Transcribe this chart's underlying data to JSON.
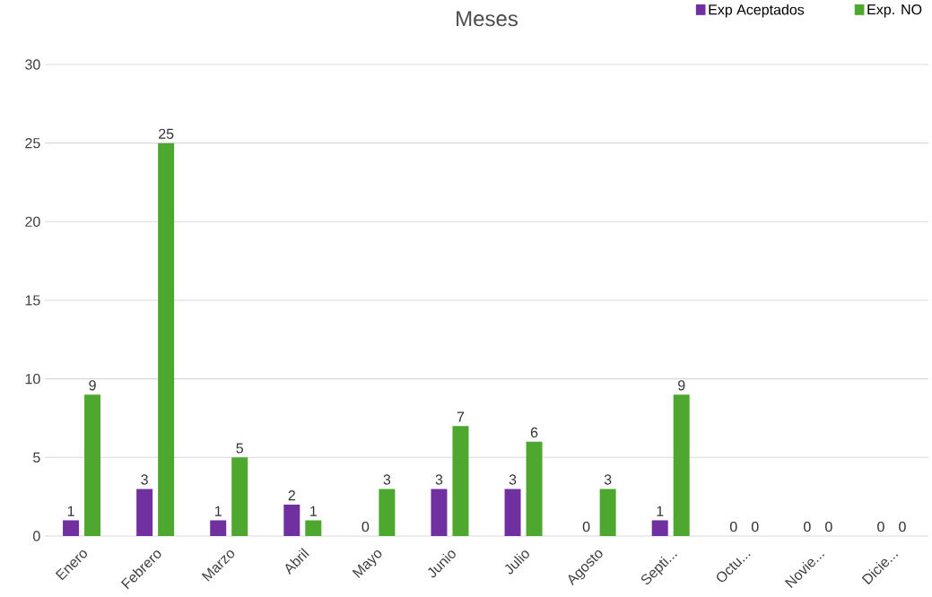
{
  "chart_data": {
    "type": "bar",
    "title": "Meses",
    "categories": [
      "Enero",
      "Febrero",
      "Marzo",
      "Abril",
      "Mayo",
      "Junio",
      "Julio",
      "Agosto",
      "Septi...",
      "Octu...",
      "Novie...",
      "Dicie..."
    ],
    "series": [
      {
        "name": "Exp Aceptados",
        "color": "#7030a0",
        "values": [
          1,
          3,
          1,
          2,
          0,
          3,
          3,
          0,
          1,
          0,
          0,
          0
        ]
      },
      {
        "name": "Exp. NO",
        "color": "#4ea72e",
        "values": [
          9,
          25,
          5,
          1,
          3,
          7,
          6,
          3,
          9,
          0,
          0,
          0
        ]
      }
    ],
    "ylim": [
      0,
      30
    ],
    "yticks": [
      0,
      5,
      10,
      15,
      20,
      25,
      30
    ],
    "grid": "y",
    "legend": "top right",
    "data_labels": true
  }
}
